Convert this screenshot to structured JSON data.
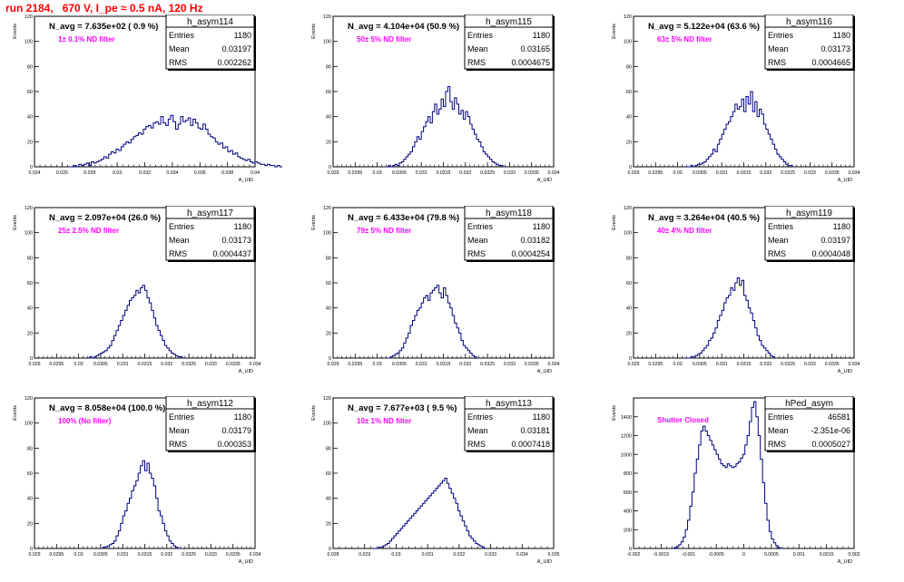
{
  "page_title": "run 2184,   670 V, I_pe ≈ 0.5 nA, 120 Hz",
  "colors": {
    "hist": "#000080",
    "title_red": "#ff0000",
    "label_magenta": "#ff00ff",
    "frame": "#000000"
  },
  "stat_labels": {
    "entries": "Entries",
    "mean": "Mean",
    "rms": "RMS"
  },
  "panels": [
    {
      "hist_name": "h_asym114",
      "n_avg": "N_avg = 7.635e+02 ( 0.9 %)",
      "filter_label": "1± 0.1% ND filter",
      "stats": {
        "entries": "1180",
        "mean": "0.03197",
        "rms": "0.002262"
      },
      "x_axis_label": "A_UID",
      "y_axis_label": "Events",
      "x_ticks": [
        "0.024",
        "0.026",
        "0.028",
        "0.03",
        "0.032",
        "0.034",
        "0.036",
        "0.038",
        "0.04"
      ],
      "y_ticks": [
        "0",
        "20",
        "40",
        "60",
        "80",
        "100",
        "120"
      ]
    },
    {
      "hist_name": "h_asym115",
      "n_avg": "N_avg = 4.104e+04 (50.9 %)",
      "filter_label": "50± 5% ND filter",
      "stats": {
        "entries": "1180",
        "mean": "0.03165",
        "rms": "0.0004675"
      },
      "x_axis_label": "A_UID",
      "y_axis_label": "Events",
      "x_ticks": [
        "0.029",
        "0.0295",
        "0.03",
        "0.0305",
        "0.031",
        "0.0315",
        "0.032",
        "0.0325",
        "0.033",
        "0.0335",
        "0.034"
      ],
      "y_ticks": [
        "0",
        "20",
        "40",
        "60",
        "80",
        "100",
        "120"
      ]
    },
    {
      "hist_name": "h_asym116",
      "n_avg": "N_avg = 5.122e+04 (63.6 %)",
      "filter_label": "63± 5% ND filter",
      "stats": {
        "entries": "1180",
        "mean": "0.03173",
        "rms": "0.0004665"
      },
      "x_axis_label": "A_UID",
      "y_axis_label": "Events",
      "x_ticks": [
        "0.029",
        "0.0295",
        "0.03",
        "0.0305",
        "0.031",
        "0.0315",
        "0.032",
        "0.0325",
        "0.033",
        "0.0335",
        "0.034"
      ],
      "y_ticks": [
        "0",
        "20",
        "40",
        "60",
        "80",
        "100",
        "120"
      ]
    },
    {
      "hist_name": "h_asym117",
      "n_avg": "N_avg = 2.097e+04 (26.0 %)",
      "filter_label": "25± 2.5% ND filter",
      "stats": {
        "entries": "1180",
        "mean": "0.03173",
        "rms": "0.0004437"
      },
      "x_axis_label": "A_UID",
      "y_axis_label": "Events",
      "x_ticks": [
        "0.029",
        "0.0295",
        "0.03",
        "0.0305",
        "0.031",
        "0.0315",
        "0.032",
        "0.0325",
        "0.033",
        "0.0335",
        "0.034"
      ],
      "y_ticks": [
        "0",
        "20",
        "40",
        "60",
        "80",
        "100",
        "120"
      ]
    },
    {
      "hist_name": "h_asym118",
      "n_avg": "N_avg = 6.433e+04 (79.8 %)",
      "filter_label": "79± 5% ND filter",
      "stats": {
        "entries": "1180",
        "mean": "0.03182",
        "rms": "0.0004254"
      },
      "x_axis_label": "A_UID",
      "y_axis_label": "Events",
      "x_ticks": [
        "0.029",
        "0.0295",
        "0.03",
        "0.0305",
        "0.031",
        "0.0315",
        "0.032",
        "0.0325",
        "0.033",
        "0.0335",
        "0.034"
      ],
      "y_ticks": [
        "0",
        "20",
        "40",
        "60",
        "80",
        "100",
        "120"
      ]
    },
    {
      "hist_name": "h_asym119",
      "n_avg": "N_avg = 3.264e+04 (40.5 %)",
      "filter_label": "40± 4% ND filter",
      "stats": {
        "entries": "1180",
        "mean": "0.03197",
        "rms": "0.0004048"
      },
      "x_axis_label": "A_UID",
      "y_axis_label": "Events",
      "x_ticks": [
        "0.029",
        "0.0295",
        "0.03",
        "0.0305",
        "0.031",
        "0.0315",
        "0.032",
        "0.0325",
        "0.033",
        "0.0335",
        "0.034"
      ],
      "y_ticks": [
        "0",
        "20",
        "40",
        "60",
        "80",
        "100",
        "120"
      ]
    },
    {
      "hist_name": "h_asym112",
      "n_avg": "N_avg = 8.058e+04 (100.0 %)",
      "filter_label": "100% (No filter)",
      "stats": {
        "entries": "1180",
        "mean": "0.03179",
        "rms": "0.000353"
      },
      "x_axis_label": "A_UID",
      "y_axis_label": "Events",
      "x_ticks": [
        "0.029",
        "0.0295",
        "0.03",
        "0.0305",
        "0.031",
        "0.0315",
        "0.032",
        "0.0325",
        "0.033",
        "0.0335",
        "0.034"
      ],
      "y_ticks": [
        "0",
        "20",
        "40",
        "60",
        "80",
        "100",
        "120"
      ]
    },
    {
      "hist_name": "h_asym113",
      "n_avg": "N_avg = 7.677e+03 ( 9.5 %)",
      "filter_label": "10± 1% ND filter",
      "stats": {
        "entries": "1180",
        "mean": "0.03181",
        "rms": "0.0007418"
      },
      "x_axis_label": "A_UID",
      "y_axis_label": "Events",
      "x_ticks": [
        "0.028",
        "0.029",
        "0.03",
        "0.031",
        "0.032",
        "0.033",
        "0.034",
        "0.035"
      ],
      "y_ticks": [
        "0",
        "20",
        "40",
        "60",
        "80",
        "100",
        "120"
      ]
    },
    {
      "hist_name": "hPed_asym",
      "n_avg": "",
      "filter_label": "Shutter Closed",
      "stats": {
        "entries": "46581",
        "mean": "-2.351e-06",
        "rms": "0.0005027"
      },
      "x_axis_label": "A_UID",
      "y_axis_label": "Events",
      "x_ticks": [
        "-0.002",
        "-0.0015",
        "-0.001",
        "-0.0005",
        "0",
        "0.0005",
        "0.001",
        "0.0015",
        "0.002"
      ],
      "y_ticks": [
        "0",
        "200",
        "400",
        "600",
        "800",
        "1000",
        "1200",
        "1400"
      ]
    }
  ],
  "chart_data": [
    {
      "type": "bar",
      "title": "h_asym114",
      "xlim": [
        0.024,
        0.04
      ],
      "ylim": [
        0,
        120
      ],
      "bin_edges_start": 0.0265,
      "bin_width": 0.00018,
      "counts": [
        0,
        0,
        1,
        0,
        2,
        1,
        2,
        3,
        1,
        4,
        3,
        4,
        5,
        6,
        8,
        7,
        10,
        12,
        11,
        14,
        13,
        16,
        18,
        20,
        19,
        22,
        24,
        25,
        27,
        26,
        30,
        32,
        33,
        31,
        35,
        36,
        34,
        40,
        35,
        33,
        38,
        41,
        36,
        30,
        34,
        40,
        36,
        37,
        39,
        33,
        38,
        35,
        31,
        30,
        34,
        30,
        26,
        24,
        23,
        20,
        18,
        19,
        15,
        16,
        12,
        13,
        10,
        11,
        8,
        7,
        6,
        5,
        6,
        4,
        3,
        4,
        3,
        2,
        2,
        1,
        2,
        1,
        1,
        0,
        1,
        0
      ]
    },
    {
      "type": "bar",
      "title": "h_asym115",
      "xlim": [
        0.029,
        0.034
      ],
      "ylim": [
        0,
        120
      ],
      "bin_edges_start": 0.0302,
      "bin_width": 5e-05,
      "counts": [
        0,
        1,
        0,
        1,
        2,
        1,
        3,
        4,
        6,
        8,
        10,
        12,
        16,
        20,
        24,
        22,
        28,
        32,
        36,
        40,
        35,
        44,
        50,
        42,
        46,
        54,
        48,
        60,
        64,
        52,
        46,
        55,
        50,
        42,
        45,
        38,
        44,
        40,
        34,
        30,
        26,
        22,
        20,
        16,
        12,
        10,
        8,
        6,
        4,
        3,
        2,
        1,
        1,
        0
      ]
    },
    {
      "type": "bar",
      "title": "h_asym116",
      "xlim": [
        0.029,
        0.034
      ],
      "ylim": [
        0,
        120
      ],
      "bin_edges_start": 0.0302,
      "bin_width": 5e-05,
      "counts": [
        0,
        0,
        1,
        0,
        1,
        2,
        2,
        3,
        4,
        6,
        8,
        10,
        14,
        12,
        18,
        22,
        26,
        30,
        34,
        36,
        40,
        44,
        50,
        46,
        48,
        54,
        44,
        56,
        50,
        60,
        44,
        52,
        40,
        46,
        42,
        34,
        30,
        26,
        22,
        18,
        14,
        10,
        8,
        6,
        4,
        2,
        1,
        1,
        0
      ]
    },
    {
      "type": "bar",
      "title": "h_asym117",
      "xlim": [
        0.029,
        0.034
      ],
      "ylim": [
        0,
        120
      ],
      "bin_edges_start": 0.0302,
      "bin_width": 5e-05,
      "counts": [
        0,
        1,
        0,
        1,
        2,
        3,
        4,
        5,
        6,
        8,
        10,
        14,
        18,
        22,
        26,
        30,
        34,
        38,
        42,
        46,
        48,
        50,
        54,
        52,
        56,
        58,
        54,
        48,
        44,
        38,
        32,
        26,
        22,
        18,
        14,
        10,
        8,
        6,
        4,
        3,
        2,
        1,
        1,
        0
      ]
    },
    {
      "type": "bar",
      "title": "h_asym118",
      "xlim": [
        0.029,
        0.034
      ],
      "ylim": [
        0,
        120
      ],
      "bin_edges_start": 0.0302,
      "bin_width": 5e-05,
      "counts": [
        0,
        0,
        1,
        2,
        3,
        4,
        6,
        8,
        12,
        16,
        20,
        26,
        30,
        34,
        38,
        40,
        44,
        48,
        50,
        46,
        52,
        54,
        56,
        58,
        52,
        48,
        56,
        50,
        44,
        40,
        34,
        28,
        24,
        20,
        14,
        10,
        8,
        6,
        4,
        2,
        1,
        0
      ]
    },
    {
      "type": "bar",
      "title": "h_asym119",
      "xlim": [
        0.029,
        0.034
      ],
      "ylim": [
        0,
        120
      ],
      "bin_edges_start": 0.0302,
      "bin_width": 5e-05,
      "counts": [
        0,
        0,
        1,
        1,
        2,
        3,
        4,
        6,
        8,
        10,
        14,
        16,
        20,
        24,
        30,
        34,
        38,
        44,
        48,
        50,
        56,
        54,
        60,
        64,
        58,
        62,
        50,
        46,
        40,
        36,
        30,
        24,
        18,
        14,
        10,
        8,
        6,
        4,
        2,
        1,
        0
      ]
    },
    {
      "type": "bar",
      "title": "h_asym112",
      "xlim": [
        0.029,
        0.034
      ],
      "ylim": [
        0,
        120
      ],
      "bin_edges_start": 0.0305,
      "bin_width": 5e-05,
      "counts": [
        0,
        1,
        1,
        2,
        3,
        4,
        6,
        10,
        14,
        20,
        26,
        30,
        36,
        40,
        46,
        50,
        54,
        60,
        66,
        70,
        62,
        68,
        60,
        56,
        50,
        40,
        30,
        26,
        20,
        14,
        10,
        6,
        4,
        2,
        1,
        0
      ]
    },
    {
      "type": "bar",
      "title": "h_asym113",
      "xlim": [
        0.028,
        0.035
      ],
      "ylim": [
        0,
        120
      ],
      "bin_edges_start": 0.0293,
      "bin_width": 7e-05,
      "counts": [
        0,
        0,
        1,
        1,
        2,
        3,
        4,
        6,
        8,
        10,
        12,
        14,
        16,
        18,
        20,
        22,
        24,
        26,
        28,
        30,
        32,
        34,
        36,
        38,
        40,
        42,
        44,
        46,
        48,
        50,
        52,
        54,
        56,
        52,
        48,
        44,
        40,
        36,
        30,
        26,
        22,
        18,
        14,
        10,
        8,
        6,
        4,
        3,
        2,
        1,
        0
      ]
    },
    {
      "type": "bar",
      "title": "hPed_asym",
      "xlim": [
        -0.002,
        0.002
      ],
      "ylim": [
        0,
        1600
      ],
      "bin_edges_start": -0.0013,
      "bin_width": 4e-05,
      "counts": [
        0,
        10,
        20,
        40,
        70,
        120,
        200,
        300,
        450,
        600,
        800,
        950,
        1100,
        1250,
        1300,
        1250,
        1200,
        1150,
        1100,
        1050,
        1000,
        950,
        900,
        880,
        860,
        900,
        880,
        860,
        870,
        900,
        920,
        960,
        1000,
        1100,
        1200,
        1350,
        1500,
        1560,
        1400,
        1200,
        950,
        700,
        480,
        300,
        180,
        100,
        60,
        30,
        10,
        0
      ]
    }
  ]
}
